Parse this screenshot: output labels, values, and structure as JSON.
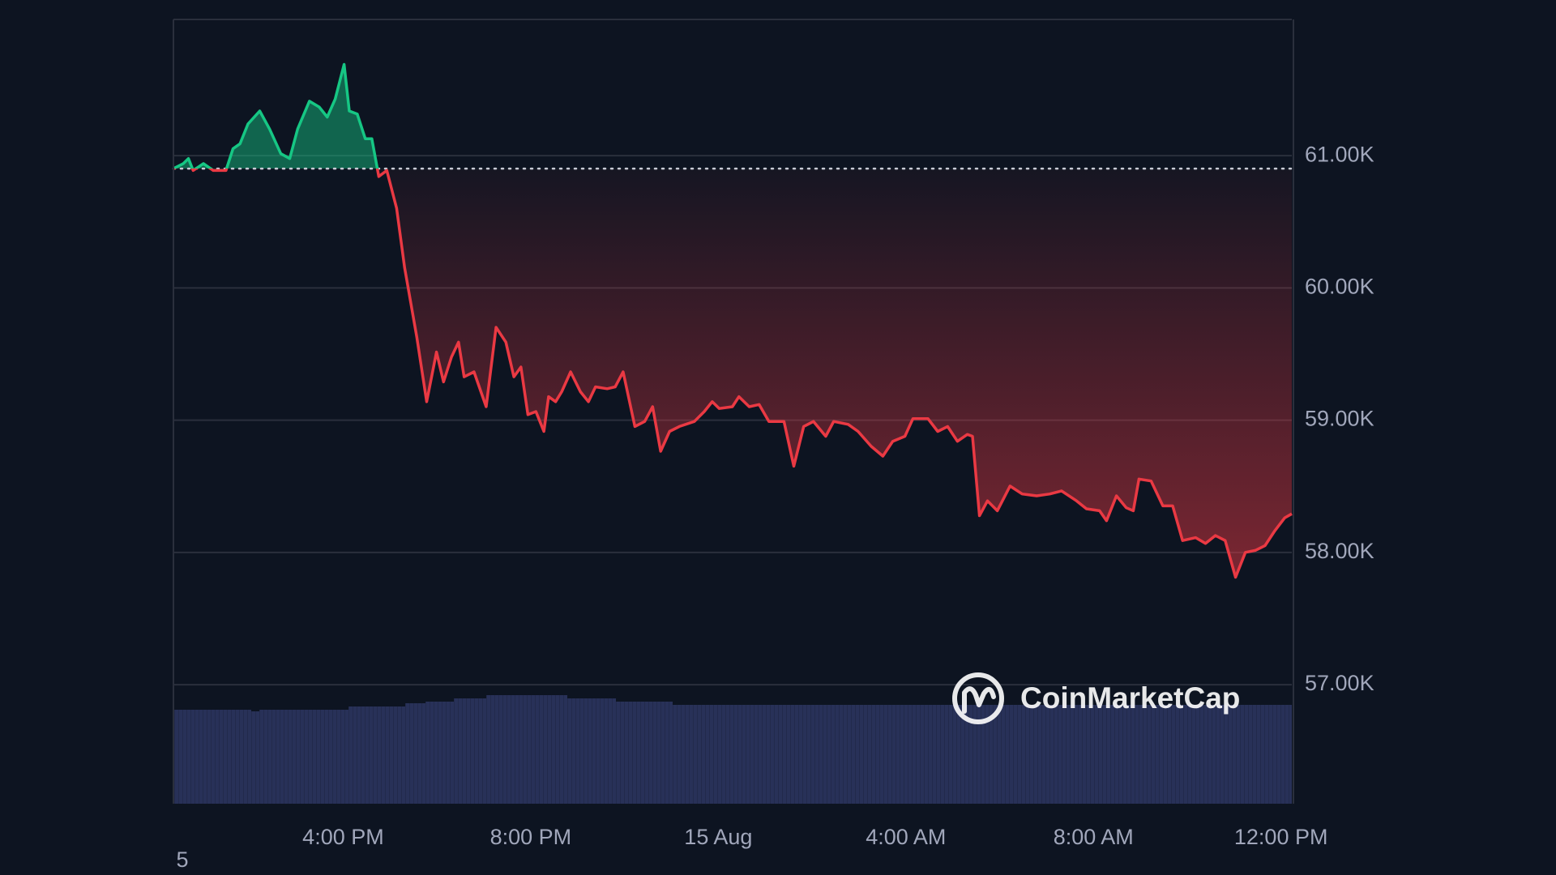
{
  "chart_data": {
    "type": "line",
    "x": [
      12.38,
      12.59,
      12.7,
      12.8,
      13.02,
      13.23,
      13.5,
      13.65,
      13.8,
      13.97,
      14.22,
      14.43,
      14.67,
      14.86,
      15.03,
      15.28,
      15.49,
      15.66,
      15.83,
      16.02,
      16.13,
      16.3,
      16.47,
      16.61,
      16.76,
      16.93,
      17.14,
      17.31,
      17.57,
      17.78,
      17.99,
      18.14,
      18.31,
      18.46,
      18.58,
      18.79,
      19.05,
      19.26,
      19.47,
      19.64,
      19.79,
      19.94,
      20.11,
      20.28,
      20.38,
      20.53,
      20.66,
      20.85,
      21.06,
      21.23,
      21.38,
      21.63,
      21.8,
      21.97,
      22.22,
      22.43,
      22.6,
      22.77,
      22.96,
      23.17,
      23.49,
      23.7,
      23.87,
      24.02,
      24.3,
      24.44,
      24.66,
      24.87,
      25.08,
      25.4,
      25.61,
      25.82,
      26.03,
      26.29,
      26.46,
      26.77,
      26.98,
      27.26,
      27.51,
      27.72,
      27.98,
      28.15,
      28.47,
      28.68,
      28.89,
      29.1,
      29.31,
      29.42,
      29.57,
      29.74,
      29.95,
      30.22,
      30.48,
      30.79,
      31.07,
      31.32,
      31.64,
      31.85,
      32.13,
      32.28,
      32.49,
      32.7,
      32.85,
      32.97,
      33.23,
      33.48,
      33.69,
      33.9,
      34.18,
      34.39,
      34.6,
      34.81,
      35.03,
      35.24,
      35.45,
      35.66,
      35.87,
      36.08,
      36.23
    ],
    "values": [
      60902,
      60940,
      60978,
      60888,
      60940,
      60888,
      60888,
      61052,
      61090,
      61240,
      61338,
      61202,
      61015,
      60978,
      61202,
      61412,
      61368,
      61292,
      61428,
      61690,
      61338,
      61315,
      61128,
      61128,
      60842,
      60888,
      60602,
      60152,
      59628,
      59140,
      59515,
      59290,
      59478,
      59590,
      59328,
      59365,
      59102,
      59702,
      59590,
      59328,
      59402,
      59042,
      59065,
      58915,
      59178,
      59140,
      59215,
      59365,
      59215,
      59140,
      59252,
      59238,
      59252,
      59365,
      58952,
      58990,
      59102,
      58765,
      58915,
      58952,
      58990,
      59065,
      59140,
      59088,
      59102,
      59178,
      59102,
      59118,
      58990,
      58990,
      58652,
      58952,
      58990,
      58878,
      58990,
      58968,
      58915,
      58802,
      58728,
      58840,
      58878,
      59012,
      59012,
      58915,
      58952,
      58840,
      58892,
      58878,
      58278,
      58390,
      58315,
      58502,
      58442,
      58428,
      58442,
      58465,
      58390,
      58330,
      58315,
      58240,
      58428,
      58338,
      58315,
      58555,
      58540,
      58352,
      58352,
      58090,
      58112,
      58068,
      58128,
      58090,
      57812,
      58000,
      58015,
      58052,
      58165,
      58262,
      58292
    ],
    "baseline": 60902,
    "xlim": [
      12.38,
      36.23
    ],
    "xticks": [
      {
        "value": 16,
        "label": "4:00 PM"
      },
      {
        "value": 20,
        "label": "8:00 PM"
      },
      {
        "value": 24,
        "label": "15 Aug"
      },
      {
        "value": 28,
        "label": "4:00 AM"
      },
      {
        "value": 32,
        "label": "8:00 AM"
      },
      {
        "value": 36,
        "label": "12:00 PM"
      }
    ],
    "ylim": [
      56100,
      62030
    ],
    "yticks": [
      {
        "value": 57000,
        "label": "57.00K"
      },
      {
        "value": 58000,
        "label": "58.00K"
      },
      {
        "value": 59000,
        "label": "59.00K"
      },
      {
        "value": 60000,
        "label": "60.00K"
      },
      {
        "value": 61000,
        "label": "61.00K"
      }
    ],
    "grid": true,
    "up_color": "#16c784",
    "down_color": "#ea3943",
    "watermark": "CoinMarketCap",
    "footnote": "5"
  }
}
